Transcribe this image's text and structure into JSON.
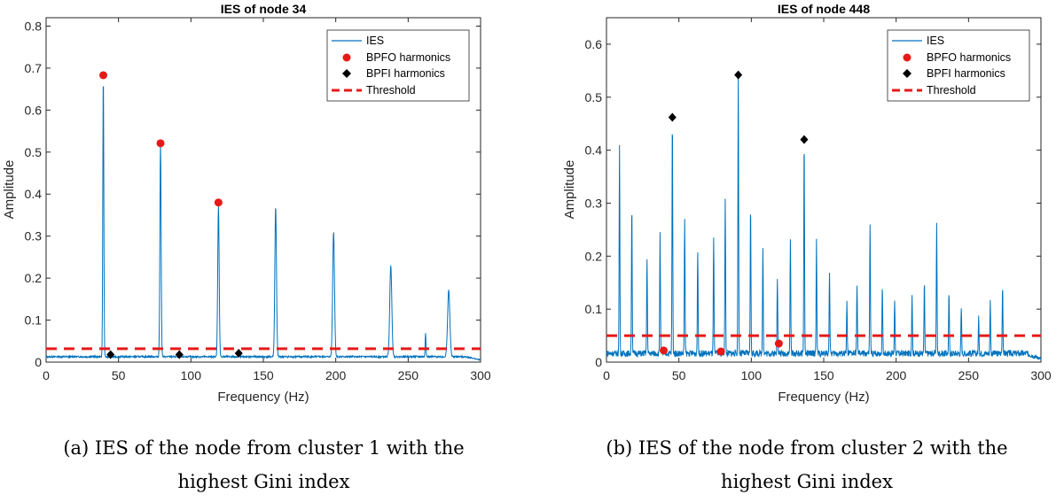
{
  "chart_data": [
    {
      "type": "line",
      "title": "IES of node 34",
      "xlabel": "Frequency (Hz)",
      "ylabel": "Amplitude",
      "xlim": [
        0,
        300
      ],
      "ylim": [
        0,
        0.82
      ],
      "xticks": [
        0,
        50,
        100,
        150,
        200,
        250,
        300
      ],
      "yticks": [
        0,
        0.1,
        0.2,
        0.3,
        0.4,
        0.5,
        0.6,
        0.7,
        0.8
      ],
      "xtick_labels": [
        "0",
        "50",
        "100",
        "150",
        "200",
        "250",
        "300"
      ],
      "ytick_labels": [
        "0",
        "0.1",
        "0.2",
        "0.3",
        "0.4",
        "0.5",
        "0.6",
        "0.7",
        "0.8"
      ],
      "baseline": 0.012,
      "noise": 0.004,
      "ies_peaks": [
        {
          "x": 39.5,
          "y": 0.68,
          "w": 0.5
        },
        {
          "x": 79,
          "y": 0.52,
          "w": 0.6
        },
        {
          "x": 119,
          "y": 0.37,
          "w": 0.7
        },
        {
          "x": 158.5,
          "y": 0.37,
          "w": 0.8
        },
        {
          "x": 198.5,
          "y": 0.31,
          "w": 0.9
        },
        {
          "x": 238,
          "y": 0.23,
          "w": 1.0
        },
        {
          "x": 262,
          "y": 0.07,
          "w": 0.4
        },
        {
          "x": 278,
          "y": 0.17,
          "w": 1.1
        }
      ],
      "series": [
        {
          "name": "BPFO harmonics",
          "x": [
            39.5,
            79,
            119
          ],
          "y": [
            0.683,
            0.521,
            0.38
          ]
        },
        {
          "name": "BPFI harmonics",
          "x": [
            44.5,
            92,
            133
          ],
          "y": [
            0.018,
            0.018,
            0.021
          ]
        }
      ],
      "threshold": 0.032,
      "legend": [
        "IES",
        "BPFO harmonics",
        "BPFI harmonics",
        "Threshold"
      ],
      "legend_position": "top-right"
    },
    {
      "type": "line",
      "title": "IES of node 448",
      "xlabel": "Frequency (Hz)",
      "ylabel": "Amplitude",
      "xlim": [
        0,
        300
      ],
      "ylim": [
        0,
        0.65
      ],
      "xticks": [
        0,
        50,
        100,
        150,
        200,
        250,
        300
      ],
      "yticks": [
        0,
        0.1,
        0.2,
        0.3,
        0.4,
        0.5,
        0.6
      ],
      "xtick_labels": [
        "0",
        "50",
        "100",
        "150",
        "200",
        "250",
        "300"
      ],
      "ytick_labels": [
        "0",
        "0.1",
        "0.2",
        "0.3",
        "0.4",
        "0.5",
        "0.6"
      ],
      "baseline": 0.014,
      "noise": 0.012,
      "ies_peaks": [
        {
          "x": 9,
          "y": 0.405,
          "w": 0.35
        },
        {
          "x": 17.5,
          "y": 0.295,
          "w": 0.35
        },
        {
          "x": 28,
          "y": 0.195,
          "w": 0.35
        },
        {
          "x": 37,
          "y": 0.24,
          "w": 0.35
        },
        {
          "x": 45.5,
          "y": 0.46,
          "w": 0.35
        },
        {
          "x": 54,
          "y": 0.27,
          "w": 0.35
        },
        {
          "x": 63,
          "y": 0.21,
          "w": 0.35
        },
        {
          "x": 74,
          "y": 0.23,
          "w": 0.35
        },
        {
          "x": 82,
          "y": 0.305,
          "w": 0.35
        },
        {
          "x": 91,
          "y": 0.54,
          "w": 0.35
        },
        {
          "x": 99.5,
          "y": 0.295,
          "w": 0.35
        },
        {
          "x": 108,
          "y": 0.215,
          "w": 0.35
        },
        {
          "x": 118,
          "y": 0.16,
          "w": 0.35
        },
        {
          "x": 127,
          "y": 0.228,
          "w": 0.35
        },
        {
          "x": 136.5,
          "y": 0.42,
          "w": 0.35
        },
        {
          "x": 145,
          "y": 0.225,
          "w": 0.35
        },
        {
          "x": 154,
          "y": 0.17,
          "w": 0.35
        },
        {
          "x": 166,
          "y": 0.108,
          "w": 0.35
        },
        {
          "x": 173,
          "y": 0.145,
          "w": 0.35
        },
        {
          "x": 182,
          "y": 0.255,
          "w": 0.35
        },
        {
          "x": 190.5,
          "y": 0.14,
          "w": 0.35
        },
        {
          "x": 199,
          "y": 0.115,
          "w": 0.35
        },
        {
          "x": 211,
          "y": 0.128,
          "w": 0.35
        },
        {
          "x": 219.5,
          "y": 0.148,
          "w": 0.35
        },
        {
          "x": 228,
          "y": 0.258,
          "w": 0.35
        },
        {
          "x": 236.5,
          "y": 0.128,
          "w": 0.35
        },
        {
          "x": 245,
          "y": 0.1,
          "w": 0.35
        },
        {
          "x": 257,
          "y": 0.08,
          "w": 0.35
        },
        {
          "x": 265,
          "y": 0.112,
          "w": 0.35
        },
        {
          "x": 273.5,
          "y": 0.145,
          "w": 0.35
        }
      ],
      "series": [
        {
          "name": "BPFO harmonics",
          "x": [
            39.5,
            79,
            119
          ],
          "y": [
            0.022,
            0.02,
            0.035
          ]
        },
        {
          "name": "BPFI harmonics",
          "x": [
            45.5,
            91,
            136.5
          ],
          "y": [
            0.462,
            0.542,
            0.42
          ]
        }
      ],
      "threshold": 0.05,
      "legend": [
        "IES",
        "BPFO harmonics",
        "BPFI harmonics",
        "Threshold"
      ],
      "legend_position": "top-right"
    }
  ],
  "captions": [
    {
      "line1": "(a) IES of the node from cluster 1 with the",
      "line2": "highest Gini index"
    },
    {
      "line1": "(b) IES of the node from cluster 2 with the",
      "line2": "highest Gini index"
    }
  ],
  "colors": {
    "ies": "#0072BD",
    "bpfo": "#E61919",
    "bpfi": "#000000",
    "threshold": "#E61919"
  }
}
